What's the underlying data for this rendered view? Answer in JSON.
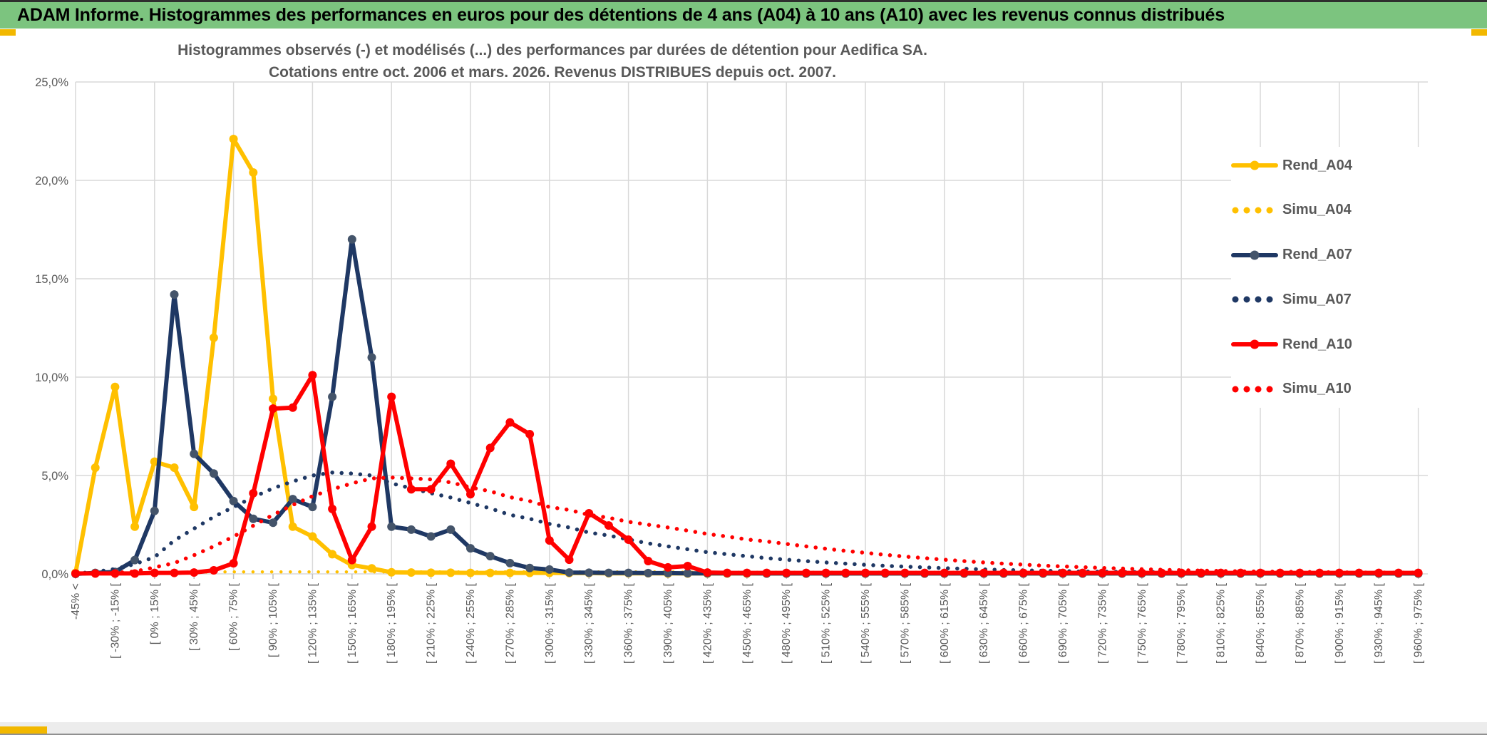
{
  "theme": {
    "header_green": "#7CC47F",
    "accent_gold": "#F2B800",
    "text_gray": "#595959",
    "grid_gray": "#D9D9D9"
  },
  "header": {
    "title": "ADAM Informe. Histogrammes des performances en euros pour des détentions de 4 ans (A04) à 10 ans (A10) avec les revenus connus distribués"
  },
  "chart_data": {
    "type": "line",
    "title_line1": "Histogrammes observés (-) et modélisés (...) des performances par durées de détention pour Aedifica SA.",
    "title_line2": "Cotations entre oct. 2006 et mars. 2026. Revenus DISTRIBUES depuis oct. 2007.",
    "ylabel": "",
    "xlabel": "",
    "ylim": [
      0,
      25
    ],
    "grid": true,
    "legend_position": "right-inside",
    "ytick_values": [
      0,
      5,
      10,
      15,
      20,
      25
    ],
    "ytick_labels": [
      "0,0%",
      "5,0%",
      "10,0%",
      "15,0%",
      "20,0%",
      "25,0%"
    ],
    "categories": [
      "-45% <",
      "",
      "[ -30% ; -15% [",
      "",
      "[ 0% ; 15% [",
      "",
      "[ 30% ; 45% [",
      "",
      "[ 60% ; 75% [",
      "",
      "[ 90% ; 105% [",
      "",
      "[ 120% ; 135% [",
      "",
      "[ 150% ; 165% [",
      "",
      "[ 180% ; 195% [",
      "",
      "[ 210% ; 225% [",
      "",
      "[ 240% ; 255% [",
      "",
      "[ 270% ; 285% [",
      "",
      "[ 300% ; 315% [",
      "",
      "[ 330% ; 345% [",
      "",
      "[ 360% ; 375% [",
      "",
      "[ 390% ; 405% [",
      "",
      "[ 420% ; 435% [",
      "",
      "[ 450% ; 465% [",
      "",
      "[ 480% ; 495% [",
      "",
      "[ 510% ; 525% [",
      "",
      "[ 540% ; 555% [",
      "",
      "[ 570% ; 585% [",
      "",
      "[ 600% ; 615% [",
      "",
      "[ 630% ; 645% [",
      "",
      "[ 660% ; 675% [",
      "",
      "[ 690% ; 705% [",
      "",
      "[ 720% ; 735% [",
      "",
      "[ 750% ; 765% [",
      "",
      "[ 780% ; 795% [",
      "",
      "[ 810% ; 825% [",
      "",
      "[ 840% ; 855% [",
      "",
      "[ 870% ; 885% [",
      "",
      "[ 900% ; 915% [",
      "",
      "[ 930% ; 945% [",
      "",
      "[ 960% ; 975% ["
    ],
    "series": [
      {
        "name": "Rend_A04",
        "style": "solid",
        "color": "#FFC000",
        "marker_color": "#FFC000",
        "has_markers": true,
        "values": [
          0.05,
          5.4,
          9.5,
          2.4,
          5.7,
          5.4,
          3.4,
          12.0,
          22.1,
          20.4,
          8.9,
          2.4,
          1.9,
          1.0,
          0.45,
          0.28,
          0.08,
          0.07,
          0.06,
          0.06,
          0.05,
          0.05,
          0.05,
          0.05,
          0.05,
          0.04,
          0.04,
          0.03,
          0.03,
          0.03,
          0.02,
          0.02,
          0.02,
          0.02,
          0.02,
          0.02,
          0.02,
          0.02,
          0.02,
          0.02,
          0.02,
          0.02,
          0.02,
          0.02,
          0.02,
          0.02,
          0.02,
          0.02,
          0.02,
          0.02,
          0.02,
          0.02,
          0.02,
          0.02,
          0.02,
          0.02,
          0.02,
          0.02,
          0.02,
          0.02,
          0.02,
          0.02,
          0.02,
          0.02,
          0.02,
          0.02,
          0.02,
          0.02,
          0.02
        ]
      },
      {
        "name": "Simu_A04",
        "style": "dotted",
        "color": "#FFC000",
        "marker_color": "#FFC000",
        "has_markers": false,
        "values": [
          0.01,
          0.02,
          0.03,
          0.05,
          0.07,
          0.08,
          0.09,
          0.1,
          0.1,
          0.1,
          0.1,
          0.1,
          0.1,
          0.1,
          0.1,
          0.1,
          0.1,
          0.1,
          0.1,
          0.1,
          0.1,
          0.1,
          0.1,
          0.1,
          0.1,
          0.1,
          0.1,
          0.1,
          0.1,
          0.1,
          0.1,
          0.08,
          0.08,
          0.08,
          0.08,
          0.08,
          0.08,
          0.08,
          0.08,
          0.08,
          0.08,
          0.08,
          0.08,
          0.08,
          0.08,
          0.08,
          0.06,
          0.06,
          0.06,
          0.06,
          0.06,
          0.06,
          0.06,
          0.06,
          0.06,
          0.06,
          0.06,
          0.06,
          0.06,
          0.06,
          0.06,
          0.05,
          0.05,
          0.05,
          0.05,
          0.05,
          0.05,
          0.05,
          0.05
        ]
      },
      {
        "name": "Rend_A07",
        "style": "solid",
        "color": "#1F3864",
        "marker_color": "#44546A",
        "has_markers": true,
        "values": [
          0.0,
          0.05,
          0.1,
          0.7,
          3.2,
          14.2,
          6.1,
          5.1,
          3.7,
          2.8,
          2.6,
          3.8,
          3.4,
          9.0,
          17.0,
          11.0,
          2.4,
          2.25,
          1.9,
          2.25,
          1.3,
          0.9,
          0.55,
          0.3,
          0.22,
          0.07,
          0.06,
          0.05,
          0.05,
          0.04,
          0.04,
          0.03,
          0.03,
          0.03,
          0.03,
          0.02,
          0.02,
          0.02,
          0.02,
          0.02,
          0.02,
          0.02,
          0.02,
          0.02,
          0.02,
          0.02,
          0.02,
          0.02,
          0.02,
          0.02,
          0.02,
          0.02,
          0.02,
          0.02,
          0.02,
          0.02,
          0.02,
          0.02,
          0.02,
          0.02,
          0.02,
          0.02,
          0.02,
          0.02,
          0.02,
          0.02,
          0.02,
          0.02,
          0.02
        ]
      },
      {
        "name": "Simu_A07",
        "style": "dotted",
        "color": "#1F3864",
        "marker_color": "#1F3864",
        "has_markers": false,
        "values": [
          0.02,
          0.1,
          0.25,
          0.5,
          0.85,
          1.7,
          2.3,
          2.9,
          3.4,
          3.9,
          4.35,
          4.7,
          5.0,
          5.15,
          5.1,
          5.0,
          4.6,
          4.35,
          4.1,
          3.88,
          3.6,
          3.33,
          3.0,
          2.8,
          2.54,
          2.36,
          2.1,
          1.95,
          1.75,
          1.55,
          1.4,
          1.25,
          1.1,
          1.0,
          0.9,
          0.8,
          0.72,
          0.65,
          0.58,
          0.52,
          0.46,
          0.41,
          0.37,
          0.33,
          0.29,
          0.26,
          0.23,
          0.2,
          0.18,
          0.16,
          0.14,
          0.12,
          0.11,
          0.1,
          0.09,
          0.08,
          0.07,
          0.06,
          0.05,
          0.05,
          0.04,
          0.04,
          0.03,
          0.03,
          0.03,
          0.02,
          0.02,
          0.02,
          0.02
        ]
      },
      {
        "name": "Rend_A10",
        "style": "solid",
        "color": "#FF0000",
        "marker_color": "#FF0000",
        "has_markers": true,
        "values": [
          0.02,
          0.02,
          0.02,
          0.02,
          0.05,
          0.05,
          0.07,
          0.18,
          0.54,
          4.1,
          8.4,
          8.45,
          10.1,
          3.3,
          0.7,
          2.4,
          9.0,
          4.3,
          4.3,
          5.6,
          4.05,
          6.4,
          7.7,
          7.1,
          1.7,
          0.72,
          3.08,
          2.46,
          1.74,
          0.65,
          0.33,
          0.4,
          0.07,
          0.05,
          0.05,
          0.05,
          0.05,
          0.05,
          0.05,
          0.05,
          0.05,
          0.05,
          0.05,
          0.05,
          0.05,
          0.05,
          0.05,
          0.05,
          0.05,
          0.05,
          0.05,
          0.05,
          0.05,
          0.05,
          0.05,
          0.05,
          0.05,
          0.05,
          0.05,
          0.05,
          0.05,
          0.05,
          0.05,
          0.05,
          0.05,
          0.05,
          0.05,
          0.05,
          0.05
        ]
      },
      {
        "name": "Simu_A10",
        "style": "dotted",
        "color": "#FF0000",
        "marker_color": "#FF0000",
        "has_markers": false,
        "values": [
          0.01,
          0.02,
          0.05,
          0.12,
          0.33,
          0.55,
          0.95,
          1.4,
          1.9,
          2.45,
          3.0,
          3.5,
          3.95,
          4.3,
          4.6,
          4.85,
          4.9,
          4.85,
          4.8,
          4.65,
          4.4,
          4.2,
          3.9,
          3.7,
          3.4,
          3.25,
          3.0,
          2.85,
          2.65,
          2.5,
          2.36,
          2.2,
          2.03,
          1.9,
          1.75,
          1.65,
          1.52,
          1.4,
          1.28,
          1.17,
          1.07,
          0.97,
          0.88,
          0.8,
          0.72,
          0.65,
          0.58,
          0.52,
          0.47,
          0.42,
          0.38,
          0.34,
          0.3,
          0.27,
          0.24,
          0.21,
          0.19,
          0.17,
          0.15,
          0.13,
          0.12,
          0.11,
          0.1,
          0.09,
          0.08,
          0.07,
          0.07,
          0.06,
          0.06
        ]
      }
    ]
  }
}
